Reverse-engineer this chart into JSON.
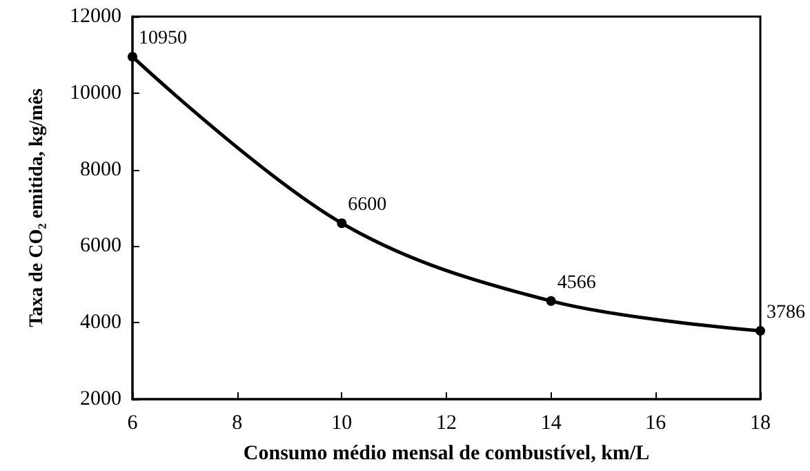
{
  "chart_data": {
    "type": "line",
    "xlabel": "Consumo médio mensal de combustível, km/L",
    "ylabel": "Taxa de CO₂ emitida, kg/mês",
    "x": [
      6,
      10,
      14,
      18
    ],
    "series": [
      {
        "color": "#000000",
        "values": [
          10950,
          6600,
          4566,
          3786
        ]
      }
    ],
    "xlim": [
      6,
      18
    ],
    "xticks": [
      6,
      8,
      10,
      12,
      14,
      16,
      18
    ],
    "ylim": [
      2000,
      12000
    ],
    "yticks": [
      2000,
      4000,
      6000,
      8000,
      10000,
      12000
    ],
    "data_labels": true,
    "marker": "circle",
    "line_style": "solid",
    "grid": false
  }
}
